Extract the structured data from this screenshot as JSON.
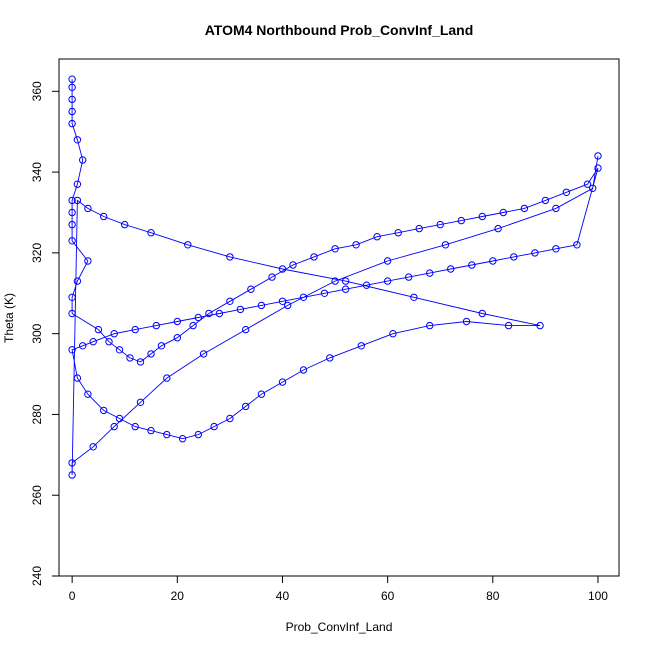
{
  "chart_data": {
    "type": "line",
    "title": "ATOM4 Northbound Prob_ConvInf_Land",
    "xlabel": "Prob_ConvInf_Land",
    "ylabel": "Theta (K)",
    "xlim": [
      -2.5,
      104
    ],
    "ylim": [
      240,
      368
    ],
    "x_ticks": [
      0,
      20,
      40,
      60,
      80,
      100
    ],
    "y_ticks": [
      240,
      260,
      280,
      300,
      320,
      340,
      360
    ],
    "grid": false,
    "legend": "none",
    "marker": "open-circle",
    "colors": {
      "series": "#0000ff",
      "axes": "#000000"
    },
    "series": [
      {
        "x": [
          0,
          0,
          0,
          0,
          0,
          1,
          2,
          1,
          0,
          0,
          0,
          0,
          3,
          1,
          0,
          0,
          5,
          7,
          9,
          11,
          13,
          15,
          17,
          20,
          23,
          26,
          30,
          34,
          38,
          42,
          46,
          50,
          54,
          58,
          62,
          66,
          70,
          74,
          78,
          82,
          86,
          90,
          94,
          98,
          100,
          96,
          92,
          88,
          84,
          80,
          76,
          72,
          68,
          64,
          60,
          56,
          52,
          48,
          44,
          40,
          36,
          32,
          28,
          24,
          20,
          16,
          12,
          8,
          4,
          2,
          0,
          1,
          3,
          6,
          9,
          12,
          15,
          18,
          21,
          24,
          27,
          30,
          33,
          36,
          40,
          44,
          49,
          55,
          61,
          68,
          75,
          83,
          89,
          78,
          65,
          52,
          40,
          30,
          22,
          15,
          10,
          6,
          3,
          1,
          0,
          0,
          4,
          8,
          13,
          18,
          25,
          33,
          41,
          50,
          60,
          71,
          81,
          92,
          99,
          100
        ],
        "y": [
          363,
          361,
          358,
          355,
          352,
          348,
          343,
          337,
          333,
          330,
          327,
          323,
          318,
          313,
          309,
          305,
          301,
          298,
          296,
          294,
          293,
          295,
          297,
          299,
          302,
          305,
          308,
          311,
          314,
          317,
          319,
          321,
          322,
          324,
          325,
          326,
          327,
          328,
          329,
          330,
          331,
          333,
          335,
          337,
          341,
          322,
          321,
          320,
          319,
          318,
          317,
          316,
          315,
          314,
          313,
          312,
          311,
          310,
          309,
          308,
          307,
          306,
          305,
          304,
          303,
          302,
          301,
          300,
          298,
          297,
          296,
          289,
          285,
          281,
          279,
          277,
          276,
          275,
          274,
          275,
          277,
          279,
          282,
          285,
          288,
          291,
          294,
          297,
          300,
          302,
          303,
          302,
          302,
          305,
          309,
          313,
          316,
          319,
          322,
          325,
          327,
          329,
          331,
          333,
          265,
          268,
          272,
          277,
          283,
          289,
          295,
          301,
          307,
          313,
          318,
          322,
          326,
          331,
          336,
          344
        ]
      }
    ]
  }
}
